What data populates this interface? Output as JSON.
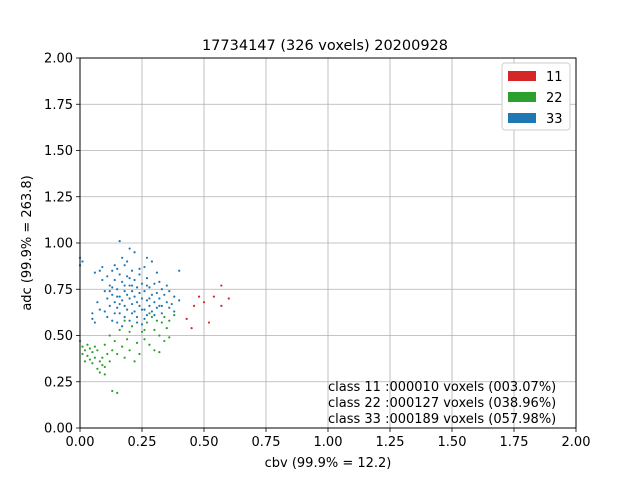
{
  "chart_data": {
    "type": "scatter",
    "title": "17734147 (326 voxels) 20200928",
    "xlabel": "cbv (99.9% = 12.2)",
    "ylabel": "adc (99.9% = 263.8)",
    "xlim": [
      0,
      2
    ],
    "ylim": [
      0,
      2
    ],
    "grid": true,
    "legend_position": "top-right",
    "x_ticks": [
      "0.00",
      "0.25",
      "0.50",
      "0.75",
      "1.00",
      "1.25",
      "1.50",
      "1.75",
      "2.00"
    ],
    "y_ticks": [
      "0.00",
      "0.25",
      "0.50",
      "0.75",
      "1.00",
      "1.25",
      "1.50",
      "1.75",
      "2.00"
    ],
    "series": [
      {
        "name": "11",
        "color": "#d62728",
        "points": [
          [
            0.43,
            0.59
          ],
          [
            0.45,
            0.54
          ],
          [
            0.46,
            0.66
          ],
          [
            0.48,
            0.71
          ],
          [
            0.5,
            0.68
          ],
          [
            0.52,
            0.57
          ],
          [
            0.54,
            0.71
          ],
          [
            0.57,
            0.77
          ],
          [
            0.57,
            0.66
          ],
          [
            0.6,
            0.7
          ]
        ]
      },
      {
        "name": "22",
        "color": "#2ca02c",
        "points": [
          [
            0.0,
            0.47
          ],
          [
            0.01,
            0.44
          ],
          [
            0.01,
            0.4
          ],
          [
            0.02,
            0.42
          ],
          [
            0.02,
            0.36
          ],
          [
            0.03,
            0.39
          ],
          [
            0.03,
            0.45
          ],
          [
            0.04,
            0.43
          ],
          [
            0.04,
            0.37
          ],
          [
            0.05,
            0.41
          ],
          [
            0.05,
            0.35
          ],
          [
            0.06,
            0.44
          ],
          [
            0.06,
            0.38
          ],
          [
            0.07,
            0.32
          ],
          [
            0.07,
            0.42
          ],
          [
            0.08,
            0.36
          ],
          [
            0.08,
            0.3
          ],
          [
            0.09,
            0.34
          ],
          [
            0.09,
            0.38
          ],
          [
            0.1,
            0.33
          ],
          [
            0.1,
            0.29
          ],
          [
            0.1,
            0.45
          ],
          [
            0.11,
            0.4
          ],
          [
            0.12,
            0.5
          ],
          [
            0.12,
            0.36
          ],
          [
            0.13,
            0.42
          ],
          [
            0.13,
            0.2
          ],
          [
            0.14,
            0.47
          ],
          [
            0.15,
            0.4
          ],
          [
            0.15,
            0.19
          ],
          [
            0.16,
            0.53
          ],
          [
            0.17,
            0.44
          ],
          [
            0.18,
            0.38
          ],
          [
            0.19,
            0.48
          ],
          [
            0.2,
            0.42
          ],
          [
            0.21,
            0.55
          ],
          [
            0.22,
            0.36
          ],
          [
            0.23,
            0.46
          ],
          [
            0.24,
            0.4
          ],
          [
            0.25,
            0.52
          ],
          [
            0.26,
            0.48
          ],
          [
            0.27,
            0.57
          ],
          [
            0.28,
            0.45
          ],
          [
            0.29,
            0.6
          ],
          [
            0.3,
            0.53
          ],
          [
            0.3,
            0.42
          ],
          [
            0.31,
            0.58
          ],
          [
            0.32,
            0.5
          ],
          [
            0.32,
            0.41
          ],
          [
            0.33,
            0.57
          ],
          [
            0.34,
            0.47
          ],
          [
            0.35,
            0.54
          ],
          [
            0.36,
            0.49
          ],
          [
            0.38,
            0.61
          ],
          [
            0.18,
            0.58
          ],
          [
            0.2,
            0.52
          ],
          [
            0.26,
            0.53
          ],
          [
            0.28,
            0.62
          ],
          [
            0.34,
            0.6
          ],
          [
            0.36,
            0.58
          ]
        ]
      },
      {
        "name": "33",
        "color": "#1f77b4",
        "points": [
          [
            0.0,
            0.92
          ],
          [
            0.0,
            0.88
          ],
          [
            0.01,
            0.9
          ],
          [
            0.05,
            0.62
          ],
          [
            0.05,
            0.59
          ],
          [
            0.06,
            0.57
          ],
          [
            0.06,
            0.84
          ],
          [
            0.07,
            0.68
          ],
          [
            0.08,
            0.85
          ],
          [
            0.08,
            0.64
          ],
          [
            0.09,
            0.87
          ],
          [
            0.09,
            0.8
          ],
          [
            0.1,
            0.74
          ],
          [
            0.1,
            0.63
          ],
          [
            0.11,
            0.7
          ],
          [
            0.11,
            0.6
          ],
          [
            0.12,
            0.77
          ],
          [
            0.12,
            0.66
          ],
          [
            0.13,
            0.85
          ],
          [
            0.13,
            0.72
          ],
          [
            0.13,
            0.58
          ],
          [
            0.14,
            0.8
          ],
          [
            0.14,
            0.68
          ],
          [
            0.14,
            0.62
          ],
          [
            0.15,
            0.86
          ],
          [
            0.15,
            0.75
          ],
          [
            0.15,
            0.65
          ],
          [
            0.15,
            0.57
          ],
          [
            0.16,
            1.01
          ],
          [
            0.16,
            0.83
          ],
          [
            0.16,
            0.71
          ],
          [
            0.16,
            0.62
          ],
          [
            0.17,
            0.79
          ],
          [
            0.17,
            0.69
          ],
          [
            0.17,
            0.55
          ],
          [
            0.18,
            0.88
          ],
          [
            0.18,
            0.74
          ],
          [
            0.18,
            0.66
          ],
          [
            0.18,
            0.6
          ],
          [
            0.19,
            0.82
          ],
          [
            0.19,
            0.72
          ],
          [
            0.19,
            0.64
          ],
          [
            0.2,
            0.97
          ],
          [
            0.2,
            0.77
          ],
          [
            0.2,
            0.7
          ],
          [
            0.2,
            0.58
          ],
          [
            0.21,
            0.85
          ],
          [
            0.21,
            0.74
          ],
          [
            0.21,
            0.67
          ],
          [
            0.22,
            0.8
          ],
          [
            0.22,
            0.71
          ],
          [
            0.22,
            0.63
          ],
          [
            0.23,
            0.76
          ],
          [
            0.23,
            0.68
          ],
          [
            0.23,
            0.6
          ],
          [
            0.24,
            0.83
          ],
          [
            0.24,
            0.73
          ],
          [
            0.24,
            0.66
          ],
          [
            0.25,
            0.78
          ],
          [
            0.25,
            0.7
          ],
          [
            0.25,
            0.56
          ],
          [
            0.26,
            0.87
          ],
          [
            0.26,
            0.74
          ],
          [
            0.26,
            0.64
          ],
          [
            0.27,
            0.81
          ],
          [
            0.27,
            0.69
          ],
          [
            0.27,
            0.61
          ],
          [
            0.28,
            0.76
          ],
          [
            0.28,
            0.66
          ],
          [
            0.29,
            0.9
          ],
          [
            0.29,
            0.72
          ],
          [
            0.29,
            0.63
          ],
          [
            0.3,
            0.78
          ],
          [
            0.3,
            0.68
          ],
          [
            0.31,
            0.84
          ],
          [
            0.31,
            0.73
          ],
          [
            0.31,
            0.65
          ],
          [
            0.32,
            0.79
          ],
          [
            0.32,
            0.7
          ],
          [
            0.33,
            0.75
          ],
          [
            0.33,
            0.66
          ],
          [
            0.34,
            0.72
          ],
          [
            0.35,
            0.68
          ],
          [
            0.36,
            0.74
          ],
          [
            0.37,
            0.67
          ],
          [
            0.38,
            0.71
          ],
          [
            0.38,
            0.63
          ],
          [
            0.4,
            0.69
          ],
          [
            0.4,
            0.85
          ],
          [
            0.14,
            0.88
          ],
          [
            0.17,
            0.92
          ],
          [
            0.19,
            0.9
          ],
          [
            0.22,
            0.95
          ],
          [
            0.24,
            0.86
          ],
          [
            0.27,
            0.92
          ],
          [
            0.12,
            0.74
          ],
          [
            0.11,
            0.82
          ],
          [
            0.21,
            0.62
          ],
          [
            0.23,
            0.57
          ],
          [
            0.26,
            0.59
          ],
          [
            0.28,
            0.7
          ],
          [
            0.3,
            0.61
          ],
          [
            0.33,
            0.62
          ],
          [
            0.35,
            0.77
          ],
          [
            0.36,
            0.65
          ],
          [
            0.18,
            0.77
          ],
          [
            0.2,
            0.81
          ],
          [
            0.16,
            0.67
          ],
          [
            0.25,
            0.64
          ],
          [
            0.15,
            0.71
          ],
          [
            0.27,
            0.77
          ],
          [
            0.32,
            0.66
          ],
          [
            0.13,
            0.76
          ],
          [
            0.21,
            0.77
          ]
        ]
      }
    ],
    "annotations": [
      "class 11 :000010 voxels (003.07%)",
      "class 22 :000127 voxels (038.96%)",
      "class 33 :000189 voxels (057.98%)"
    ]
  }
}
